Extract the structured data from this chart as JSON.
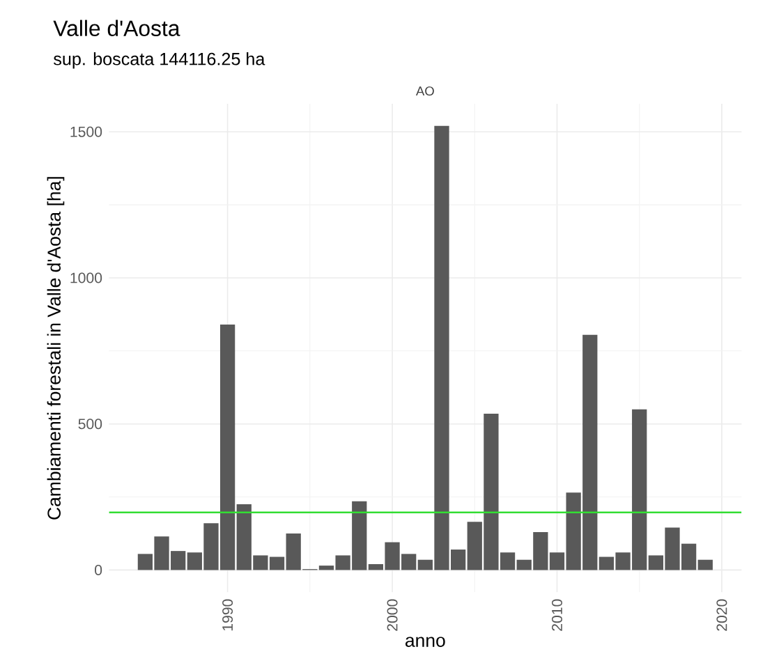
{
  "chart_data": {
    "type": "bar",
    "title": "Valle d'Aosta",
    "subtitle": "sup. boscata 144116.25 ha",
    "annotations": [
      "AO"
    ],
    "xlabel": "anno",
    "ylabel": "Cambiamenti forestali in  Valle d'Aosta [ha]",
    "x": [
      1985,
      1986,
      1987,
      1988,
      1989,
      1990,
      1991,
      1992,
      1993,
      1994,
      1995,
      1996,
      1997,
      1998,
      1999,
      2000,
      2001,
      2002,
      2003,
      2004,
      2005,
      2006,
      2007,
      2008,
      2009,
      2010,
      2011,
      2012,
      2013,
      2014,
      2015,
      2016,
      2017,
      2018,
      2019
    ],
    "values": [
      55,
      115,
      65,
      60,
      160,
      840,
      225,
      50,
      45,
      125,
      3,
      15,
      50,
      235,
      20,
      95,
      55,
      35,
      1520,
      70,
      165,
      535,
      60,
      35,
      130,
      60,
      265,
      805,
      45,
      60,
      550,
      50,
      145,
      90,
      35
    ],
    "color": "#595959",
    "xlim": [
      1982.8,
      2021.2
    ],
    "ylim": [
      -76,
      1596
    ],
    "xticks": [
      1990,
      2000,
      2010,
      2020
    ],
    "yticks": [
      0,
      500,
      1000,
      1500
    ],
    "ref_lines": [
      {
        "axis": "y",
        "value": 197,
        "color": "#33dd33"
      }
    ],
    "grid": true
  }
}
